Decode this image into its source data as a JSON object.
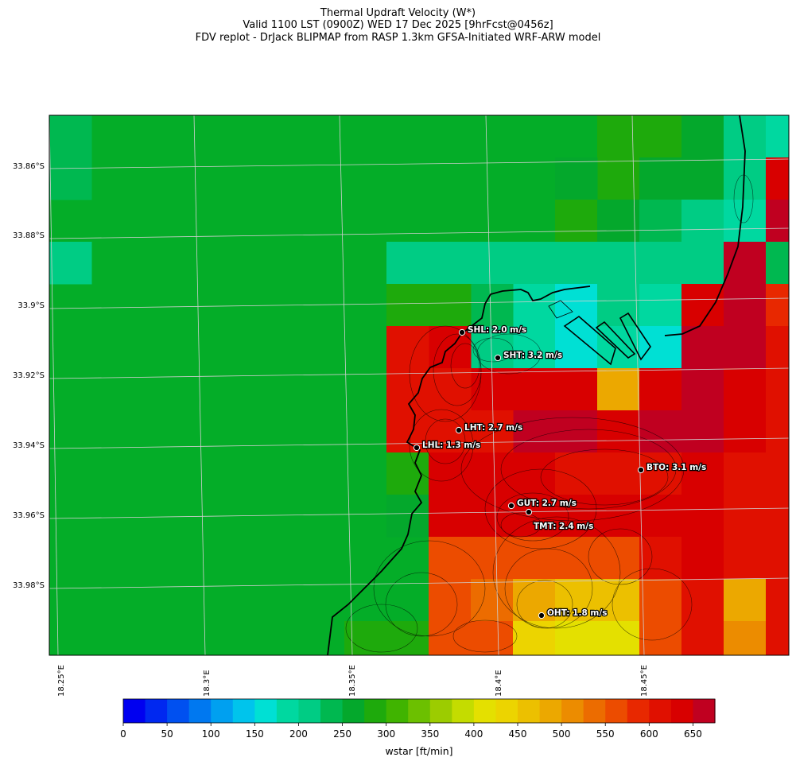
{
  "title": {
    "line1": "Thermal Updraft Velocity (W*)",
    "line2": "Valid 1100 LST (0900Z) WED 17 Dec 2025 [9hrFcst@0456z]",
    "line3": "FDV replot - DrJack BLIPMAP from RASP 1.3km GFSA-Initiated WRF-ARW model"
  },
  "axes": {
    "lat_labels": [
      "33.86°S",
      "33.88°S",
      "33.9°S",
      "33.92°S",
      "33.94°S",
      "33.96°S",
      "33.98°S"
    ],
    "lon_labels": [
      "18.25°E",
      "18.3°E",
      "18.35°E",
      "18.4°E",
      "18.45°E"
    ]
  },
  "stations": [
    {
      "label": "SHL: 2.0 m/s"
    },
    {
      "label": "SHT: 3.2 m/s"
    },
    {
      "label": "LHT: 2.7 m/s"
    },
    {
      "label": "LHL: 1.3 m/s"
    },
    {
      "label": "BTO: 3.1 m/s"
    },
    {
      "label": "GUT: 2.7 m/s"
    },
    {
      "label": "TMT: 2.4 m/s"
    },
    {
      "label": "OHT: 1.8 m/s"
    }
  ],
  "colorbar": {
    "label": "wstar [ft/min]",
    "ticks": [
      "0",
      "50",
      "100",
      "150",
      "200",
      "250",
      "300",
      "350",
      "400",
      "450",
      "500",
      "550",
      "600",
      "650"
    ],
    "colors": [
      "#0000f0",
      "#0028f0",
      "#0050f0",
      "#0078f0",
      "#00a0f0",
      "#00c4ec",
      "#00e0d4",
      "#00d8a0",
      "#00cc84",
      "#00b850",
      "#04a82c",
      "#1eaa0c",
      "#40b400",
      "#6cc000",
      "#9ccc00",
      "#c4dc00",
      "#e4e000",
      "#ecd400",
      "#ecc000",
      "#eca800",
      "#ec8c00",
      "#ec6c00",
      "#ec4c00",
      "#e82800",
      "#e01000",
      "#d80000",
      "#c00020"
    ]
  },
  "palette": {
    "map_green": "#04ad28",
    "grid": "#cccccc",
    "coast": "#000000"
  }
}
